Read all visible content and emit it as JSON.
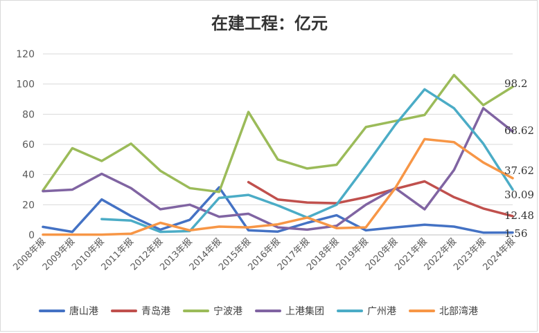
{
  "chart_data": {
    "type": "line",
    "title": "在建工程：亿元",
    "xlabel": "",
    "ylabel": "",
    "ylim": [
      0,
      120
    ],
    "yticks": [
      0,
      20,
      40,
      60,
      80,
      100,
      120
    ],
    "grid": true,
    "legend_position": "bottom",
    "categories": [
      "2008年报",
      "2009年报",
      "2010年报",
      "2011年报",
      "2012年报",
      "2013年报",
      "2014年报",
      "2015年报",
      "2016年报",
      "2017年报",
      "2018年报",
      "2019年报",
      "2020年报",
      "2021年报",
      "2022年报",
      "2023年报",
      "2024年报"
    ],
    "series": [
      {
        "name": "唐山港",
        "color": "#4472c4",
        "values": [
          5.3,
          2.0,
          23.5,
          12.5,
          3.5,
          10.0,
          31.5,
          3.0,
          2.2,
          8.0,
          13.0,
          3.0,
          5.0,
          6.8,
          5.5,
          1.5,
          1.56
        ]
      },
      {
        "name": "青岛港",
        "color": "#c0504d",
        "values": [
          null,
          null,
          null,
          null,
          null,
          null,
          null,
          35.0,
          23.5,
          21.5,
          21.0,
          25.0,
          30.5,
          35.5,
          25.0,
          17.5,
          12.48
        ]
      },
      {
        "name": "宁波港",
        "color": "#9bbb59",
        "values": [
          29.5,
          57.5,
          49.0,
          60.5,
          42.5,
          31.0,
          28.5,
          81.5,
          50.0,
          44.0,
          46.5,
          71.5,
          75.5,
          79.5,
          106.0,
          86.0,
          98.2
        ]
      },
      {
        "name": "上港集团",
        "color": "#8064a2",
        "values": [
          29.0,
          30.0,
          40.5,
          31.0,
          17.0,
          20.0,
          12.0,
          14.0,
          5.0,
          3.5,
          6.0,
          20.0,
          31.0,
          17.0,
          43.0,
          84.0,
          68.62
        ]
      },
      {
        "name": "广州港",
        "color": "#4bacc6",
        "values": [
          null,
          null,
          10.5,
          9.5,
          2.0,
          2.5,
          24.5,
          26.5,
          19.5,
          11.5,
          20.0,
          46.0,
          73.0,
          96.5,
          84.0,
          60.5,
          30.09
        ]
      },
      {
        "name": "北部湾港",
        "color": "#f79646",
        "values": [
          0.2,
          0.2,
          0.2,
          0.8,
          8.0,
          3.0,
          5.5,
          5.0,
          7.0,
          11.5,
          4.5,
          5.0,
          31.0,
          63.5,
          61.5,
          48.0,
          37.62
        ]
      }
    ],
    "end_labels": [
      "98.2",
      "68.62",
      "37.62",
      "30.09",
      "12.48",
      "1.56"
    ],
    "end_label_values": [
      98.2,
      68.62,
      37.62,
      30.09,
      12.48,
      1.56
    ]
  }
}
